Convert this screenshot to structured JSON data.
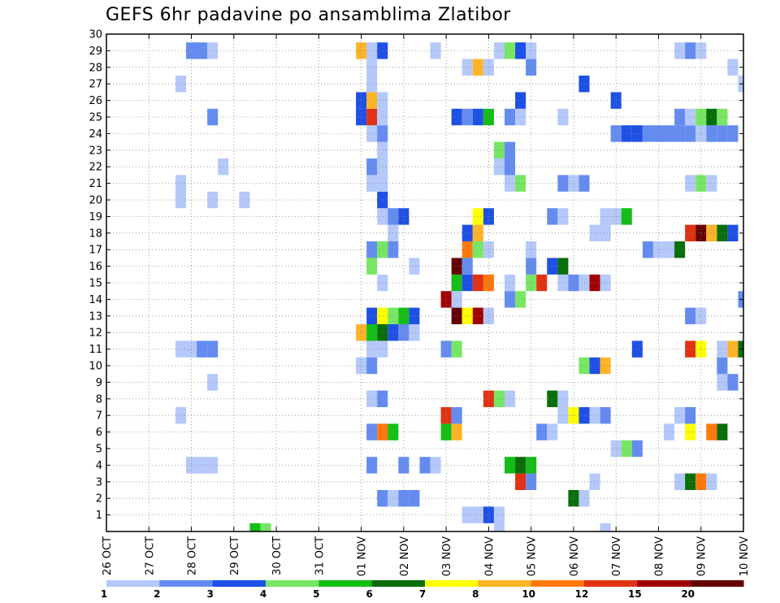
{
  "chart_data": {
    "type": "heatmap",
    "title": "GEFS 6hr padavine po ansamblima Zlatibor",
    "xlabel": "",
    "ylabel": "",
    "x_ticks": [
      "26 OCT",
      "27 OCT",
      "28 OCT",
      "29 OCT",
      "30 OCT",
      "31 OCT",
      "01 NOV",
      "02 NOV",
      "03 NOV",
      "04 NOV",
      "05 NOV",
      "06 NOV",
      "07 NOV",
      "08 NOV",
      "09 NOV",
      "10 NOV"
    ],
    "xlim": [
      0,
      60
    ],
    "y_ticks": [
      1,
      2,
      3,
      4,
      5,
      6,
      7,
      8,
      9,
      10,
      11,
      12,
      13,
      14,
      15,
      16,
      17,
      18,
      19,
      20,
      21,
      22,
      23,
      24,
      25,
      26,
      27,
      28,
      29,
      30
    ],
    "ylim": [
      0,
      30
    ],
    "grid": true,
    "colorbar": {
      "labels": [
        "1",
        "2",
        "3",
        "4",
        "5",
        "6",
        "7",
        "8",
        "10",
        "12",
        "15",
        "20"
      ],
      "colors": [
        "#b4c8fa",
        "#648cf0",
        "#1e50e6",
        "#78e664",
        "#14be14",
        "#0a6e0a",
        "#ffff00",
        "#ffb428",
        "#ff780a",
        "#e13214",
        "#a00000",
        "#640000"
      ]
    },
    "cells": [
      [
        14,
        0,
        "#14be14"
      ],
      [
        15,
        0,
        "#78e664"
      ],
      [
        37,
        0,
        "#b4c8fa"
      ],
      [
        47,
        0,
        "#b4c8fa"
      ],
      [
        34,
        1,
        "#b4c8fa"
      ],
      [
        35,
        1,
        "#b4c8fa"
      ],
      [
        36,
        1,
        "#1e50e6"
      ],
      [
        37,
        1,
        "#b4c8fa"
      ],
      [
        26,
        2,
        "#648cf0"
      ],
      [
        27,
        2,
        "#b4c8fa"
      ],
      [
        28,
        2,
        "#648cf0"
      ],
      [
        29,
        2,
        "#648cf0"
      ],
      [
        44,
        2,
        "#0a6e0a"
      ],
      [
        45,
        2,
        "#b4c8fa"
      ],
      [
        39,
        3,
        "#e13214"
      ],
      [
        40,
        3,
        "#648cf0"
      ],
      [
        46,
        3,
        "#b4c8fa"
      ],
      [
        54,
        3,
        "#b4c8fa"
      ],
      [
        55,
        3,
        "#0a6e0a"
      ],
      [
        56,
        3,
        "#ff780a"
      ],
      [
        57,
        3,
        "#b4c8fa"
      ],
      [
        8,
        4,
        "#b4c8fa"
      ],
      [
        9,
        4,
        "#b4c8fa"
      ],
      [
        10,
        4,
        "#b4c8fa"
      ],
      [
        25,
        4,
        "#648cf0"
      ],
      [
        28,
        4,
        "#648cf0"
      ],
      [
        30,
        4,
        "#648cf0"
      ],
      [
        31,
        4,
        "#b4c8fa"
      ],
      [
        38,
        4,
        "#14be14"
      ],
      [
        39,
        4,
        "#0a6e0a"
      ],
      [
        40,
        4,
        "#14be14"
      ],
      [
        48,
        5,
        "#b4c8fa"
      ],
      [
        49,
        5,
        "#78e664"
      ],
      [
        50,
        5,
        "#648cf0"
      ],
      [
        25,
        6,
        "#648cf0"
      ],
      [
        26,
        6,
        "#ff780a"
      ],
      [
        27,
        6,
        "#14be14"
      ],
      [
        32,
        6,
        "#14be14"
      ],
      [
        33,
        6,
        "#ffb428"
      ],
      [
        41,
        6,
        "#648cf0"
      ],
      [
        42,
        6,
        "#b4c8fa"
      ],
      [
        53,
        6,
        "#b4c8fa"
      ],
      [
        55,
        6,
        "#ffff00"
      ],
      [
        57,
        6,
        "#ff780a"
      ],
      [
        58,
        6,
        "#0a6e0a"
      ],
      [
        7,
        7,
        "#b4c8fa"
      ],
      [
        32,
        7,
        "#e13214"
      ],
      [
        33,
        7,
        "#648cf0"
      ],
      [
        43,
        7,
        "#b4c8fa"
      ],
      [
        44,
        7,
        "#ffff00"
      ],
      [
        45,
        7,
        "#1e50e6"
      ],
      [
        46,
        7,
        "#b4c8fa"
      ],
      [
        47,
        7,
        "#648cf0"
      ],
      [
        54,
        7,
        "#b4c8fa"
      ],
      [
        55,
        7,
        "#648cf0"
      ],
      [
        25,
        8,
        "#b4c8fa"
      ],
      [
        26,
        8,
        "#648cf0"
      ],
      [
        36,
        8,
        "#e13214"
      ],
      [
        37,
        8,
        "#78e664"
      ],
      [
        38,
        8,
        "#b4c8fa"
      ],
      [
        42,
        8,
        "#0a6e0a"
      ],
      [
        43,
        8,
        "#b4c8fa"
      ],
      [
        10,
        9,
        "#b4c8fa"
      ],
      [
        58,
        9,
        "#b4c8fa"
      ],
      [
        59,
        9,
        "#648cf0"
      ],
      [
        24,
        10,
        "#b4c8fa"
      ],
      [
        25,
        10,
        "#648cf0"
      ],
      [
        45,
        10,
        "#78e664"
      ],
      [
        46,
        10,
        "#1e50e6"
      ],
      [
        47,
        10,
        "#ffb428"
      ],
      [
        58,
        10,
        "#648cf0"
      ],
      [
        7,
        11,
        "#b4c8fa"
      ],
      [
        8,
        11,
        "#b4c8fa"
      ],
      [
        9,
        11,
        "#648cf0"
      ],
      [
        10,
        11,
        "#648cf0"
      ],
      [
        25,
        11,
        "#b4c8fa"
      ],
      [
        26,
        11,
        "#b4c8fa"
      ],
      [
        32,
        11,
        "#648cf0"
      ],
      [
        33,
        11,
        "#78e664"
      ],
      [
        50,
        11,
        "#1e50e6"
      ],
      [
        55,
        11,
        "#e13214"
      ],
      [
        56,
        11,
        "#ffff00"
      ],
      [
        58,
        11,
        "#b4c8fa"
      ],
      [
        59,
        11,
        "#ffb428"
      ],
      [
        60,
        11,
        "#0a6e0a"
      ],
      [
        24,
        12,
        "#ffb428"
      ],
      [
        25,
        12,
        "#14be14"
      ],
      [
        26,
        12,
        "#0a6e0a"
      ],
      [
        27,
        12,
        "#1e50e6"
      ],
      [
        28,
        12,
        "#648cf0"
      ],
      [
        29,
        12,
        "#b4c8fa"
      ],
      [
        25,
        13,
        "#1e50e6"
      ],
      [
        26,
        13,
        "#ffff00"
      ],
      [
        27,
        13,
        "#78e664"
      ],
      [
        28,
        13,
        "#14be14"
      ],
      [
        29,
        13,
        "#1e50e6"
      ],
      [
        33,
        13,
        "#640000"
      ],
      [
        34,
        13,
        "#ffff00"
      ],
      [
        35,
        13,
        "#a00000"
      ],
      [
        36,
        13,
        "#b4c8fa"
      ],
      [
        55,
        13,
        "#648cf0"
      ],
      [
        56,
        13,
        "#b4c8fa"
      ],
      [
        32,
        14,
        "#a00000"
      ],
      [
        33,
        14,
        "#b4c8fa"
      ],
      [
        38,
        14,
        "#648cf0"
      ],
      [
        39,
        14,
        "#78e664"
      ],
      [
        60,
        14,
        "#648cf0"
      ],
      [
        26,
        15,
        "#b4c8fa"
      ],
      [
        33,
        15,
        "#14be14"
      ],
      [
        34,
        15,
        "#1e50e6"
      ],
      [
        35,
        15,
        "#e13214"
      ],
      [
        36,
        15,
        "#ff780a"
      ],
      [
        38,
        15,
        "#b4c8fa"
      ],
      [
        40,
        15,
        "#78e664"
      ],
      [
        41,
        15,
        "#e13214"
      ],
      [
        43,
        15,
        "#b4c8fa"
      ],
      [
        44,
        15,
        "#648cf0"
      ],
      [
        45,
        15,
        "#b4c8fa"
      ],
      [
        46,
        15,
        "#a00000"
      ],
      [
        47,
        15,
        "#b4c8fa"
      ],
      [
        25,
        16,
        "#78e664"
      ],
      [
        29,
        16,
        "#b4c8fa"
      ],
      [
        33,
        16,
        "#640000"
      ],
      [
        34,
        16,
        "#648cf0"
      ],
      [
        40,
        16,
        "#648cf0"
      ],
      [
        42,
        16,
        "#1e50e6"
      ],
      [
        43,
        16,
        "#0a6e0a"
      ],
      [
        25,
        17,
        "#648cf0"
      ],
      [
        26,
        17,
        "#78e664"
      ],
      [
        27,
        17,
        "#648cf0"
      ],
      [
        34,
        17,
        "#ff780a"
      ],
      [
        35,
        17,
        "#78e664"
      ],
      [
        36,
        17,
        "#b4c8fa"
      ],
      [
        40,
        17,
        "#b4c8fa"
      ],
      [
        51,
        17,
        "#648cf0"
      ],
      [
        52,
        17,
        "#b4c8fa"
      ],
      [
        53,
        17,
        "#b4c8fa"
      ],
      [
        54,
        17,
        "#0a6e0a"
      ],
      [
        27,
        18,
        "#b4c8fa"
      ],
      [
        34,
        18,
        "#1e50e6"
      ],
      [
        35,
        18,
        "#ffb428"
      ],
      [
        46,
        18,
        "#b4c8fa"
      ],
      [
        47,
        18,
        "#b4c8fa"
      ],
      [
        55,
        18,
        "#e13214"
      ],
      [
        56,
        18,
        "#640000"
      ],
      [
        57,
        18,
        "#ffb428"
      ],
      [
        58,
        18,
        "#0a6e0a"
      ],
      [
        59,
        18,
        "#1e50e6"
      ],
      [
        26,
        19,
        "#b4c8fa"
      ],
      [
        27,
        19,
        "#648cf0"
      ],
      [
        28,
        19,
        "#1e50e6"
      ],
      [
        35,
        19,
        "#ffff00"
      ],
      [
        36,
        19,
        "#1e50e6"
      ],
      [
        42,
        19,
        "#648cf0"
      ],
      [
        43,
        19,
        "#b4c8fa"
      ],
      [
        47,
        19,
        "#b4c8fa"
      ],
      [
        48,
        19,
        "#b4c8fa"
      ],
      [
        49,
        19,
        "#14be14"
      ],
      [
        7,
        20,
        "#b4c8fa"
      ],
      [
        10,
        20,
        "#b4c8fa"
      ],
      [
        13,
        20,
        "#b4c8fa"
      ],
      [
        26,
        20,
        "#1e50e6"
      ],
      [
        7,
        21,
        "#b4c8fa"
      ],
      [
        25,
        21,
        "#b4c8fa"
      ],
      [
        26,
        21,
        "#b4c8fa"
      ],
      [
        38,
        21,
        "#b4c8fa"
      ],
      [
        39,
        21,
        "#78e664"
      ],
      [
        43,
        21,
        "#648cf0"
      ],
      [
        44,
        21,
        "#b4c8fa"
      ],
      [
        45,
        21,
        "#648cf0"
      ],
      [
        55,
        21,
        "#b4c8fa"
      ],
      [
        56,
        21,
        "#78e664"
      ],
      [
        57,
        21,
        "#b4c8fa"
      ],
      [
        11,
        22,
        "#b4c8fa"
      ],
      [
        25,
        22,
        "#648cf0"
      ],
      [
        26,
        22,
        "#b4c8fa"
      ],
      [
        37,
        22,
        "#b4c8fa"
      ],
      [
        38,
        22,
        "#648cf0"
      ],
      [
        26,
        23,
        "#b4c8fa"
      ],
      [
        37,
        23,
        "#78e664"
      ],
      [
        38,
        23,
        "#648cf0"
      ],
      [
        25,
        24,
        "#b4c8fa"
      ],
      [
        26,
        24,
        "#648cf0"
      ],
      [
        48,
        24,
        "#648cf0"
      ],
      [
        49,
        24,
        "#1e50e6"
      ],
      [
        50,
        24,
        "#1e50e6"
      ],
      [
        51,
        24,
        "#648cf0"
      ],
      [
        52,
        24,
        "#648cf0"
      ],
      [
        53,
        24,
        "#648cf0"
      ],
      [
        54,
        24,
        "#648cf0"
      ],
      [
        55,
        24,
        "#648cf0"
      ],
      [
        56,
        24,
        "#b4c8fa"
      ],
      [
        57,
        24,
        "#648cf0"
      ],
      [
        58,
        24,
        "#648cf0"
      ],
      [
        59,
        24,
        "#648cf0"
      ],
      [
        10,
        25,
        "#648cf0"
      ],
      [
        24,
        25,
        "#1e50e6"
      ],
      [
        25,
        25,
        "#e13214"
      ],
      [
        26,
        25,
        "#b4c8fa"
      ],
      [
        33,
        25,
        "#1e50e6"
      ],
      [
        34,
        25,
        "#648cf0"
      ],
      [
        35,
        25,
        "#1e50e6"
      ],
      [
        36,
        25,
        "#14be14"
      ],
      [
        38,
        25,
        "#648cf0"
      ],
      [
        39,
        25,
        "#b4c8fa"
      ],
      [
        43,
        25,
        "#b4c8fa"
      ],
      [
        54,
        25,
        "#648cf0"
      ],
      [
        55,
        25,
        "#b4c8fa"
      ],
      [
        56,
        25,
        "#78e664"
      ],
      [
        57,
        25,
        "#0a6e0a"
      ],
      [
        58,
        25,
        "#78e664"
      ],
      [
        24,
        26,
        "#1e50e6"
      ],
      [
        25,
        26,
        "#ffb428"
      ],
      [
        26,
        26,
        "#b4c8fa"
      ],
      [
        39,
        26,
        "#1e50e6"
      ],
      [
        48,
        26,
        "#1e50e6"
      ],
      [
        7,
        27,
        "#b4c8fa"
      ],
      [
        25,
        27,
        "#b4c8fa"
      ],
      [
        45,
        27,
        "#1e50e6"
      ],
      [
        60,
        27,
        "#b4c8fa"
      ],
      [
        25,
        28,
        "#b4c8fa"
      ],
      [
        34,
        28,
        "#b4c8fa"
      ],
      [
        35,
        28,
        "#ffb428"
      ],
      [
        36,
        28,
        "#b4c8fa"
      ],
      [
        40,
        28,
        "#648cf0"
      ],
      [
        59,
        28,
        "#b4c8fa"
      ],
      [
        8,
        29,
        "#648cf0"
      ],
      [
        9,
        29,
        "#648cf0"
      ],
      [
        10,
        29,
        "#b4c8fa"
      ],
      [
        24,
        29,
        "#ffb428"
      ],
      [
        25,
        29,
        "#b4c8fa"
      ],
      [
        26,
        29,
        "#1e50e6"
      ],
      [
        31,
        29,
        "#b4c8fa"
      ],
      [
        37,
        29,
        "#b4c8fa"
      ],
      [
        38,
        29,
        "#78e664"
      ],
      [
        39,
        29,
        "#1e50e6"
      ],
      [
        40,
        29,
        "#b4c8fa"
      ],
      [
        54,
        29,
        "#b4c8fa"
      ],
      [
        55,
        29,
        "#648cf0"
      ],
      [
        56,
        29,
        "#b4c8fa"
      ]
    ]
  }
}
